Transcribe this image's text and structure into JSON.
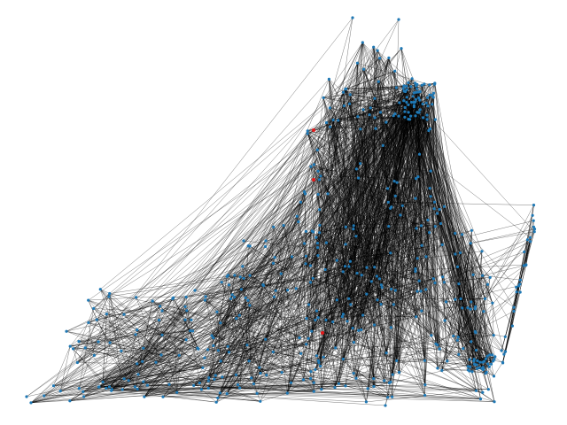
{
  "diagram": {
    "type": "network-graph",
    "node_color": "#1f78b4",
    "highlight_node_color": "#e31a1c",
    "edge_color": "#000000",
    "background_color": "#ffffff",
    "highlighted_node_count": 3
  }
}
